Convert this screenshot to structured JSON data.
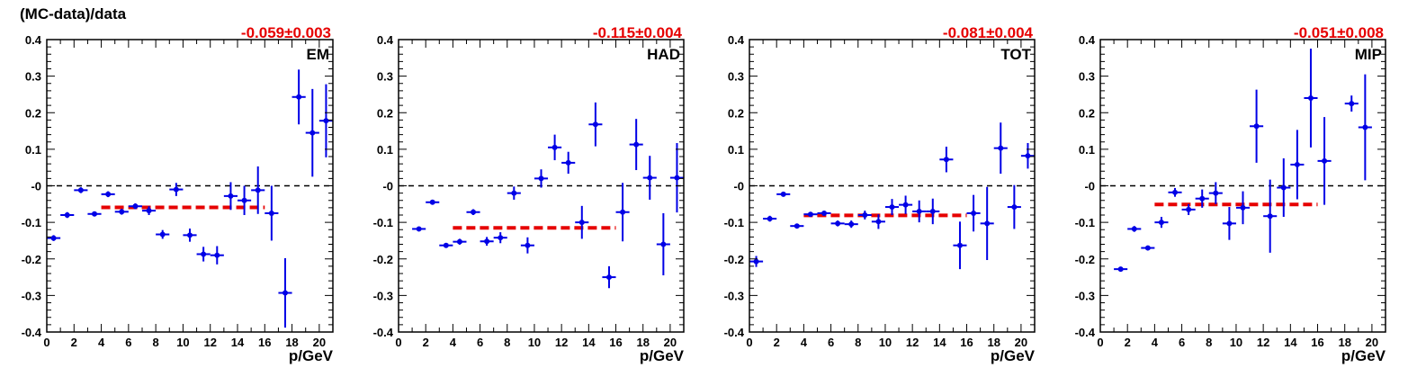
{
  "figure": {
    "ylabel": "(MC-data)/data",
    "colors": {
      "points": "#0000e6",
      "fit": "#e60000",
      "zero": "#000000",
      "fit_label": "#e60000"
    }
  },
  "chart_data": [
    {
      "type": "scatter",
      "panel_label": "EM",
      "fit_label": "-0.059±0.003",
      "fit": {
        "value": -0.059,
        "x_range": [
          4,
          16
        ]
      },
      "xlabel": "p/GeV",
      "xlim": [
        0,
        21
      ],
      "ylim": [
        -0.4,
        0.4
      ],
      "x_ticks": [
        0,
        2,
        4,
        6,
        8,
        10,
        12,
        14,
        16,
        18,
        20
      ],
      "y_ticks": [
        -0.4,
        -0.3,
        -0.2,
        -0.1,
        0,
        0.1,
        0.2,
        0.3,
        0.4
      ],
      "y_tick_labels": [
        "-0.4",
        "-0.3",
        "-0.2",
        "-0.1",
        "-0",
        "0.1",
        "0.2",
        "0.3",
        "0.4"
      ],
      "points": [
        {
          "x": 0.5,
          "y": -0.143,
          "err": 0.008
        },
        {
          "x": 1.5,
          "y": -0.08,
          "err": 0.008
        },
        {
          "x": 2.5,
          "y": -0.012,
          "err": 0.008
        },
        {
          "x": 3.5,
          "y": -0.077,
          "err": 0.006
        },
        {
          "x": 4.5,
          "y": -0.023,
          "err": 0.008
        },
        {
          "x": 5.5,
          "y": -0.071,
          "err": 0.008
        },
        {
          "x": 6.5,
          "y": -0.056,
          "err": 0.008
        },
        {
          "x": 7.5,
          "y": -0.068,
          "err": 0.012
        },
        {
          "x": 8.5,
          "y": -0.133,
          "err": 0.012
        },
        {
          "x": 9.5,
          "y": -0.01,
          "err": 0.018
        },
        {
          "x": 10.5,
          "y": -0.135,
          "err": 0.018
        },
        {
          "x": 11.5,
          "y": -0.187,
          "err": 0.02
        },
        {
          "x": 12.5,
          "y": -0.19,
          "err": 0.025
        },
        {
          "x": 13.5,
          "y": -0.028,
          "err": 0.038
        },
        {
          "x": 14.5,
          "y": -0.04,
          "err": 0.04
        },
        {
          "x": 15.5,
          "y": -0.012,
          "err": 0.065
        },
        {
          "x": 16.5,
          "y": -0.075,
          "err": 0.075
        },
        {
          "x": 17.5,
          "y": -0.293,
          "err": 0.095
        },
        {
          "x": 18.5,
          "y": 0.243,
          "err": 0.075
        },
        {
          "x": 19.5,
          "y": 0.145,
          "err": 0.12
        },
        {
          "x": 20.5,
          "y": 0.178,
          "err": 0.1
        }
      ]
    },
    {
      "type": "scatter",
      "panel_label": "HAD",
      "fit_label": "-0.115±0.004",
      "fit": {
        "value": -0.115,
        "x_range": [
          4,
          16
        ]
      },
      "xlabel": "p/GeV",
      "xlim": [
        0,
        21
      ],
      "ylim": [
        -0.4,
        0.4
      ],
      "x_ticks": [
        0,
        2,
        4,
        6,
        8,
        10,
        12,
        14,
        16,
        18,
        20
      ],
      "y_ticks": [
        -0.4,
        -0.3,
        -0.2,
        -0.1,
        0,
        0.1,
        0.2,
        0.3,
        0.4
      ],
      "y_tick_labels": [
        "-0.4",
        "-0.3",
        "-0.2",
        "-0.1",
        "-0",
        "0.1",
        "0.2",
        "0.3",
        "0.4"
      ],
      "points": [
        {
          "x": 1.5,
          "y": -0.118,
          "err": 0.006
        },
        {
          "x": 2.5,
          "y": -0.045,
          "err": 0.006
        },
        {
          "x": 3.5,
          "y": -0.163,
          "err": 0.006
        },
        {
          "x": 4.5,
          "y": -0.153,
          "err": 0.008
        },
        {
          "x": 5.5,
          "y": -0.072,
          "err": 0.008
        },
        {
          "x": 6.5,
          "y": -0.152,
          "err": 0.012
        },
        {
          "x": 7.5,
          "y": -0.142,
          "err": 0.015
        },
        {
          "x": 8.5,
          "y": -0.02,
          "err": 0.018
        },
        {
          "x": 9.5,
          "y": -0.163,
          "err": 0.022
        },
        {
          "x": 10.5,
          "y": 0.02,
          "err": 0.025
        },
        {
          "x": 11.5,
          "y": 0.105,
          "err": 0.035
        },
        {
          "x": 12.5,
          "y": 0.063,
          "err": 0.03
        },
        {
          "x": 13.5,
          "y": -0.1,
          "err": 0.045
        },
        {
          "x": 14.5,
          "y": 0.168,
          "err": 0.06
        },
        {
          "x": 15.5,
          "y": -0.25,
          "err": 0.03
        },
        {
          "x": 16.5,
          "y": -0.072,
          "err": 0.08
        },
        {
          "x": 17.5,
          "y": 0.113,
          "err": 0.07
        },
        {
          "x": 18.5,
          "y": 0.022,
          "err": 0.06
        },
        {
          "x": 19.5,
          "y": -0.16,
          "err": 0.085
        },
        {
          "x": 20.5,
          "y": 0.022,
          "err": 0.095
        }
      ]
    },
    {
      "type": "scatter",
      "panel_label": "TOT",
      "fit_label": "-0.081±0.004",
      "fit": {
        "value": -0.081,
        "x_range": [
          4,
          16
        ]
      },
      "xlabel": "p/GeV",
      "xlim": [
        0,
        21
      ],
      "ylim": [
        -0.4,
        0.4
      ],
      "x_ticks": [
        0,
        2,
        4,
        6,
        8,
        10,
        12,
        14,
        16,
        18,
        20
      ],
      "y_ticks": [
        -0.4,
        -0.3,
        -0.2,
        -0.1,
        0,
        0.1,
        0.2,
        0.3,
        0.4
      ],
      "y_tick_labels": [
        "-0.4",
        "-0.3",
        "-0.2",
        "-0.1",
        "-0",
        "0.1",
        "0.2",
        "0.3",
        "0.4"
      ],
      "points": [
        {
          "x": 0.5,
          "y": -0.207,
          "err": 0.015
        },
        {
          "x": 1.5,
          "y": -0.09,
          "err": 0.008
        },
        {
          "x": 2.5,
          "y": -0.023,
          "err": 0.006
        },
        {
          "x": 3.5,
          "y": -0.11,
          "err": 0.006
        },
        {
          "x": 4.5,
          "y": -0.078,
          "err": 0.006
        },
        {
          "x": 5.5,
          "y": -0.075,
          "err": 0.006
        },
        {
          "x": 6.5,
          "y": -0.103,
          "err": 0.008
        },
        {
          "x": 7.5,
          "y": -0.105,
          "err": 0.01
        },
        {
          "x": 8.5,
          "y": -0.08,
          "err": 0.012
        },
        {
          "x": 9.5,
          "y": -0.098,
          "err": 0.02
        },
        {
          "x": 10.5,
          "y": -0.058,
          "err": 0.022
        },
        {
          "x": 11.5,
          "y": -0.052,
          "err": 0.025
        },
        {
          "x": 12.5,
          "y": -0.07,
          "err": 0.03
        },
        {
          "x": 13.5,
          "y": -0.07,
          "err": 0.035
        },
        {
          "x": 14.5,
          "y": 0.072,
          "err": 0.035
        },
        {
          "x": 15.5,
          "y": -0.163,
          "err": 0.065
        },
        {
          "x": 16.5,
          "y": -0.075,
          "err": 0.05
        },
        {
          "x": 17.5,
          "y": -0.103,
          "err": 0.1
        },
        {
          "x": 18.5,
          "y": 0.103,
          "err": 0.07
        },
        {
          "x": 19.5,
          "y": -0.058,
          "err": 0.06
        },
        {
          "x": 20.5,
          "y": 0.082,
          "err": 0.035
        }
      ]
    },
    {
      "type": "scatter",
      "panel_label": "MIP",
      "fit_label": "-0.051±0.008",
      "fit": {
        "value": -0.051,
        "x_range": [
          4,
          16
        ]
      },
      "xlabel": "p/GeV",
      "xlim": [
        0,
        21
      ],
      "ylim": [
        -0.4,
        0.4
      ],
      "x_ticks": [
        0,
        2,
        4,
        6,
        8,
        10,
        12,
        14,
        16,
        18,
        20
      ],
      "y_ticks": [
        -0.4,
        -0.3,
        -0.2,
        -0.1,
        0,
        0.1,
        0.2,
        0.3,
        0.4
      ],
      "y_tick_labels": [
        "-0.4",
        "-0.3",
        "-0.2",
        "-0.1",
        "-0",
        "0.1",
        "0.2",
        "0.3",
        "0.4"
      ],
      "points": [
        {
          "x": 1.5,
          "y": -0.228,
          "err": 0.006
        },
        {
          "x": 2.5,
          "y": -0.118,
          "err": 0.008
        },
        {
          "x": 3.5,
          "y": -0.17,
          "err": 0.006
        },
        {
          "x": 4.5,
          "y": -0.1,
          "err": 0.015
        },
        {
          "x": 5.5,
          "y": -0.018,
          "err": 0.012
        },
        {
          "x": 6.5,
          "y": -0.065,
          "err": 0.015
        },
        {
          "x": 7.5,
          "y": -0.035,
          "err": 0.025
        },
        {
          "x": 8.5,
          "y": -0.02,
          "err": 0.03
        },
        {
          "x": 9.5,
          "y": -0.103,
          "err": 0.045
        },
        {
          "x": 10.5,
          "y": -0.06,
          "err": 0.045
        },
        {
          "x": 11.5,
          "y": 0.163,
          "err": 0.1
        },
        {
          "x": 12.5,
          "y": -0.083,
          "err": 0.1
        },
        {
          "x": 13.5,
          "y": -0.005,
          "err": 0.08
        },
        {
          "x": 14.5,
          "y": 0.058,
          "err": 0.095
        },
        {
          "x": 15.5,
          "y": 0.24,
          "err": 0.135
        },
        {
          "x": 16.5,
          "y": 0.068,
          "err": 0.12
        },
        {
          "x": 18.5,
          "y": 0.225,
          "err": 0.022
        },
        {
          "x": 19.5,
          "y": 0.16,
          "err": 0.145
        }
      ]
    }
  ]
}
